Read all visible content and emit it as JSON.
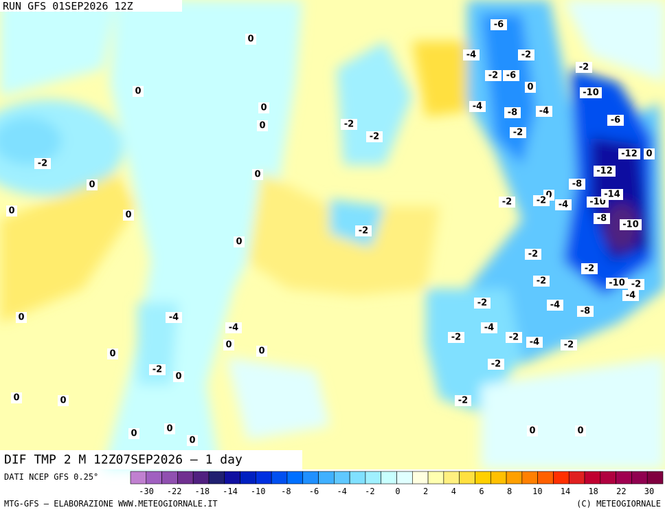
{
  "header": {
    "run": "RUN GFS 01SEP2026 12Z",
    "field": "DIF TMP 2 M 12Z07SEP2026 — 1 day"
  },
  "footer": {
    "source": "DATI NCEP GFS 0.25°",
    "credit": "MTG-GFS — ELABORAZIONE WWW.METEOGIORNALE.IT",
    "copyright": "(C) METEOGIORNALE"
  },
  "legend": {
    "colors": [
      "#c080d0",
      "#a060c0",
      "#9050b0",
      "#703090",
      "#502080",
      "#202070",
      "#1010a0",
      "#0020c0",
      "#0030e0",
      "#0050f0",
      "#0070ff",
      "#2090ff",
      "#40b0ff",
      "#60c8ff",
      "#80e0ff",
      "#a0f0ff",
      "#c8ffff",
      "#e0ffff",
      "#ffffe0",
      "#ffffb0",
      "#fff080",
      "#ffe040",
      "#ffd000",
      "#ffc000",
      "#ffa000",
      "#ff8000",
      "#ff6000",
      "#ff3000",
      "#e02020",
      "#c00030",
      "#b00040",
      "#a00050",
      "#900050",
      "#800040"
    ],
    "ticks": [
      -30,
      -22,
      -18,
      -14,
      -10,
      -8,
      -6,
      -4,
      -2,
      0,
      2,
      4,
      6,
      8,
      10,
      14,
      18,
      22,
      30
    ]
  },
  "contour_labels": [
    "0",
    "0",
    "0",
    "0",
    "0",
    "0",
    "0",
    "0",
    "0",
    "0",
    "0",
    "0",
    "0",
    "0",
    "0",
    "0",
    "0",
    "0",
    "0",
    "0",
    "0",
    "0",
    "0",
    "0",
    "-2",
    "-2",
    "-2",
    "-2",
    "-2",
    "-2",
    "-2",
    "-2",
    "-2",
    "-2",
    "-2",
    "-2",
    "-2",
    "-2",
    "-2",
    "-2",
    "-2",
    "-2",
    "-2",
    "-2",
    "-2",
    "-4",
    "-4",
    "-4",
    "-4",
    "-4",
    "-4",
    "-4",
    "-4",
    "-4",
    "-4",
    "-6",
    "-6",
    "-6",
    "-8",
    "-8",
    "-8",
    "-8",
    "-10",
    "-10",
    "-10",
    "-10",
    "-12",
    "-12",
    "-14"
  ]
}
